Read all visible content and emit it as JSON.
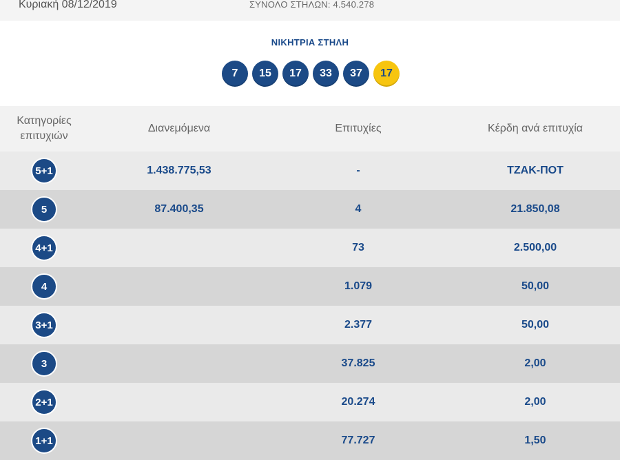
{
  "top_bar": {
    "date": "Κυριακή 08/12/2019",
    "total_columns": "ΣΥΝΟΛΟ ΣΤΗΛΩΝ: 4.540.278"
  },
  "winning": {
    "title": "ΝΙΚΗΤΡΙΑ ΣΤΗΛΗ",
    "numbers": [
      "7",
      "15",
      "17",
      "33",
      "37"
    ],
    "joker": "17"
  },
  "table": {
    "headers": {
      "category": "Κατηγορίες επιτυχιών",
      "distributed": "Διανεμόμενα",
      "winners": "Επιτυχίες",
      "prize": "Κέρδη ανά επιτυχία"
    },
    "rows": [
      {
        "category": "5+1",
        "distributed": "1.438.775,53",
        "winners": "-",
        "prize": "ΤΖΑΚ-ΠΟΤ"
      },
      {
        "category": "5",
        "distributed": "87.400,35",
        "winners": "4",
        "prize": "21.850,08"
      },
      {
        "category": "4+1",
        "distributed": "",
        "winners": "73",
        "prize": "2.500,00"
      },
      {
        "category": "4",
        "distributed": "",
        "winners": "1.079",
        "prize": "50,00"
      },
      {
        "category": "3+1",
        "distributed": "",
        "winners": "2.377",
        "prize": "50,00"
      },
      {
        "category": "3",
        "distributed": "",
        "winners": "37.825",
        "prize": "2,00"
      },
      {
        "category": "2+1",
        "distributed": "",
        "winners": "20.274",
        "prize": "2,00"
      },
      {
        "category": "1+1",
        "distributed": "",
        "winners": "77.727",
        "prize": "1,50"
      }
    ]
  },
  "colors": {
    "ball_blue": "#1c4a86",
    "joker_yellow": "#f7c50f",
    "text_blue": "#1a4a8a"
  }
}
